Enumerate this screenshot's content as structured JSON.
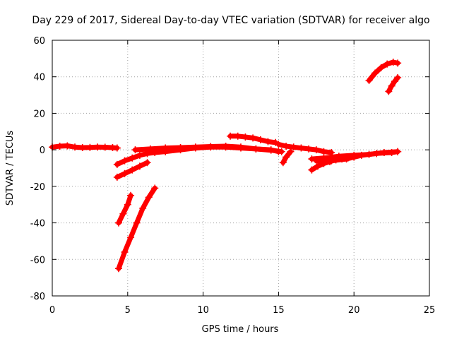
{
  "chart_data": {
    "type": "scatter",
    "title": "Day 229 of 2017, Sidereal Day-to-day VTEC variation (SDTVAR) for receiver algo",
    "xlabel": "GPS time / hours",
    "ylabel": "SDTVAR / TECUs",
    "xlim": [
      0,
      25
    ],
    "ylim": [
      -80,
      60
    ],
    "xticks": [
      0,
      5,
      10,
      15,
      20,
      25
    ],
    "yticks": [
      -80,
      -60,
      -40,
      -20,
      0,
      20,
      40,
      60
    ],
    "xtick_labels": [
      "0",
      "5",
      "10",
      "15",
      "20",
      "25"
    ],
    "ytick_labels": [
      "-80",
      "-60",
      "-40",
      "-20",
      "0",
      "20",
      "40",
      "60"
    ],
    "grid": true,
    "legend": "none",
    "marker": "plus",
    "color": "#ff0000",
    "series": [
      {
        "x": [
          0.0,
          0.5,
          1.0,
          1.5,
          2.0,
          2.5,
          3.0,
          3.5,
          4.0,
          4.3
        ],
        "y": [
          1.5,
          2.0,
          2.2,
          1.5,
          1.2,
          1.3,
          1.5,
          1.4,
          1.2,
          1.0
        ]
      },
      {
        "x": [
          4.3,
          4.8,
          5.3,
          5.8,
          6.3,
          6.8,
          7.5,
          8.5,
          9.5,
          10.5,
          11.5,
          12.5,
          13.5,
          14.5,
          15.0
        ],
        "y": [
          -8.0,
          -6.0,
          -4.5,
          -3.0,
          -2.0,
          -1.5,
          -1.0,
          0.0,
          1.0,
          1.5,
          1.5,
          1.0,
          0.5,
          0.0,
          -1.0
        ]
      },
      {
        "x": [
          4.3,
          4.8,
          5.3,
          5.8,
          6.3
        ],
        "y": [
          -15.0,
          -13.0,
          -11.0,
          -9.0,
          -7.0
        ]
      },
      {
        "x": [
          5.5,
          6.5,
          7.5,
          8.5,
          9.5,
          10.5,
          11.5,
          12.5,
          13.5,
          14.5,
          15.2
        ],
        "y": [
          0.0,
          0.5,
          1.0,
          1.2,
          1.5,
          1.8,
          2.0,
          1.5,
          0.5,
          -0.2,
          -1.0
        ]
      },
      {
        "x": [
          4.4,
          4.7,
          5.0,
          5.2
        ],
        "y": [
          -40.0,
          -35.0,
          -30.0,
          -25.0
        ]
      },
      {
        "x": [
          4.4,
          4.8,
          5.2,
          5.6,
          6.0,
          6.4,
          6.8
        ],
        "y": [
          -65.0,
          -56.0,
          -48.0,
          -40.0,
          -32.0,
          -26.0,
          -21.0
        ]
      },
      {
        "x": [
          11.8,
          12.3,
          12.8,
          13.3,
          13.8,
          14.3,
          14.8
        ],
        "y": [
          7.5,
          7.5,
          7.0,
          6.5,
          5.5,
          4.5,
          4.0
        ]
      },
      {
        "x": [
          15.0,
          15.5,
          16.0,
          16.5,
          17.0,
          17.5,
          18.0,
          18.5
        ],
        "y": [
          3.0,
          2.0,
          1.5,
          1.0,
          0.5,
          0.0,
          -1.0,
          -1.5
        ]
      },
      {
        "x": [
          15.3,
          15.5,
          15.8
        ],
        "y": [
          -7.0,
          -4.0,
          -1.0
        ]
      },
      {
        "x": [
          17.2,
          17.6,
          18.0,
          18.4,
          18.8,
          19.2,
          19.6,
          20.0
        ],
        "y": [
          -11.0,
          -9.0,
          -7.5,
          -6.5,
          -5.5,
          -5.0,
          -4.5,
          -4.0
        ]
      },
      {
        "x": [
          17.2,
          18.0,
          19.0,
          20.0,
          21.0,
          22.0,
          22.9
        ],
        "y": [
          -5.0,
          -4.5,
          -3.5,
          -3.0,
          -2.5,
          -1.5,
          -1.0
        ]
      },
      {
        "x": [
          17.5,
          18.5,
          19.5,
          20.5,
          21.5,
          22.5,
          22.9
        ],
        "y": [
          -6.0,
          -6.0,
          -5.0,
          -3.0,
          -2.0,
          -1.5,
          -1.0
        ]
      },
      {
        "x": [
          21.0,
          21.4,
          21.8,
          22.2,
          22.6,
          22.9
        ],
        "y": [
          38.0,
          42.0,
          45.0,
          47.0,
          48.0,
          47.5
        ]
      },
      {
        "x": [
          22.3,
          22.5,
          22.7,
          22.9
        ],
        "y": [
          32.0,
          35.0,
          37.5,
          39.5
        ]
      }
    ]
  }
}
